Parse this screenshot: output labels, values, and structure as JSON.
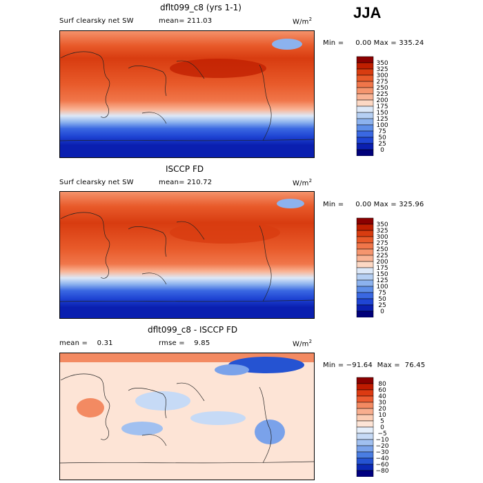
{
  "season": "JJA",
  "units": "W/m",
  "units_sup": "2",
  "chart_data": [
    {
      "type": "heatmap",
      "title": "dflt099_c8 (yrs 1-1)",
      "field": "Surf clearsky net SW",
      "stat_text": "mean= 211.03",
      "range_text": "Min =     0.00 Max = 335.24",
      "colorbar": {
        "levels": [
          "350",
          "325",
          "300",
          "275",
          "250",
          "225",
          "200",
          "175",
          "150",
          "125",
          "100",
          "75",
          "50",
          "25",
          "0"
        ],
        "colors": [
          "#8b0000",
          "#bf1e00",
          "#d83c10",
          "#e85a2a",
          "#f0764a",
          "#f5956e",
          "#f9b496",
          "#fcd8c4",
          "#dce8f8",
          "#b5cff3",
          "#8cb2ee",
          "#5e8ee8",
          "#3a68e2",
          "#1f45d4",
          "#0a1fb0",
          "#00007a"
        ]
      }
    },
    {
      "type": "heatmap",
      "title": "ISCCP FD",
      "field": "Surf clearsky net SW",
      "stat_text": "mean= 210.72",
      "range_text": "Min =     0.00 Max = 325.96",
      "colorbar": {
        "levels": [
          "350",
          "325",
          "300",
          "275",
          "250",
          "225",
          "200",
          "175",
          "150",
          "125",
          "100",
          "75",
          "50",
          "25",
          "0"
        ],
        "colors": [
          "#8b0000",
          "#bf1e00",
          "#d83c10",
          "#e85a2a",
          "#f0764a",
          "#f5956e",
          "#f9b496",
          "#fcd8c4",
          "#dce8f8",
          "#b5cff3",
          "#8cb2ee",
          "#5e8ee8",
          "#3a68e2",
          "#1f45d4",
          "#0a1fb0",
          "#00007a"
        ]
      }
    },
    {
      "type": "heatmap",
      "title": "dflt099_c8 - ISCCP FD",
      "mean_text": "mean =    0.31",
      "rmse_text": "rmse =    9.85",
      "range_text": "Min = −91.64  Max =  76.45",
      "colorbar": {
        "levels": [
          "80",
          "60",
          "40",
          "30",
          "20",
          "10",
          "5",
          "0",
          "−5",
          "−10",
          "−20",
          "−30",
          "−40",
          "−60",
          "−80"
        ],
        "colors": [
          "#8b0000",
          "#c01a00",
          "#dc3a12",
          "#ec5c32",
          "#f38a62",
          "#f8ae8e",
          "#fbcdb4",
          "#fde4d6",
          "#e4eefa",
          "#c6daf6",
          "#a1c0f0",
          "#7aa2ea",
          "#4a7de2",
          "#2553d2",
          "#0b28b4",
          "#000080"
        ]
      }
    }
  ]
}
